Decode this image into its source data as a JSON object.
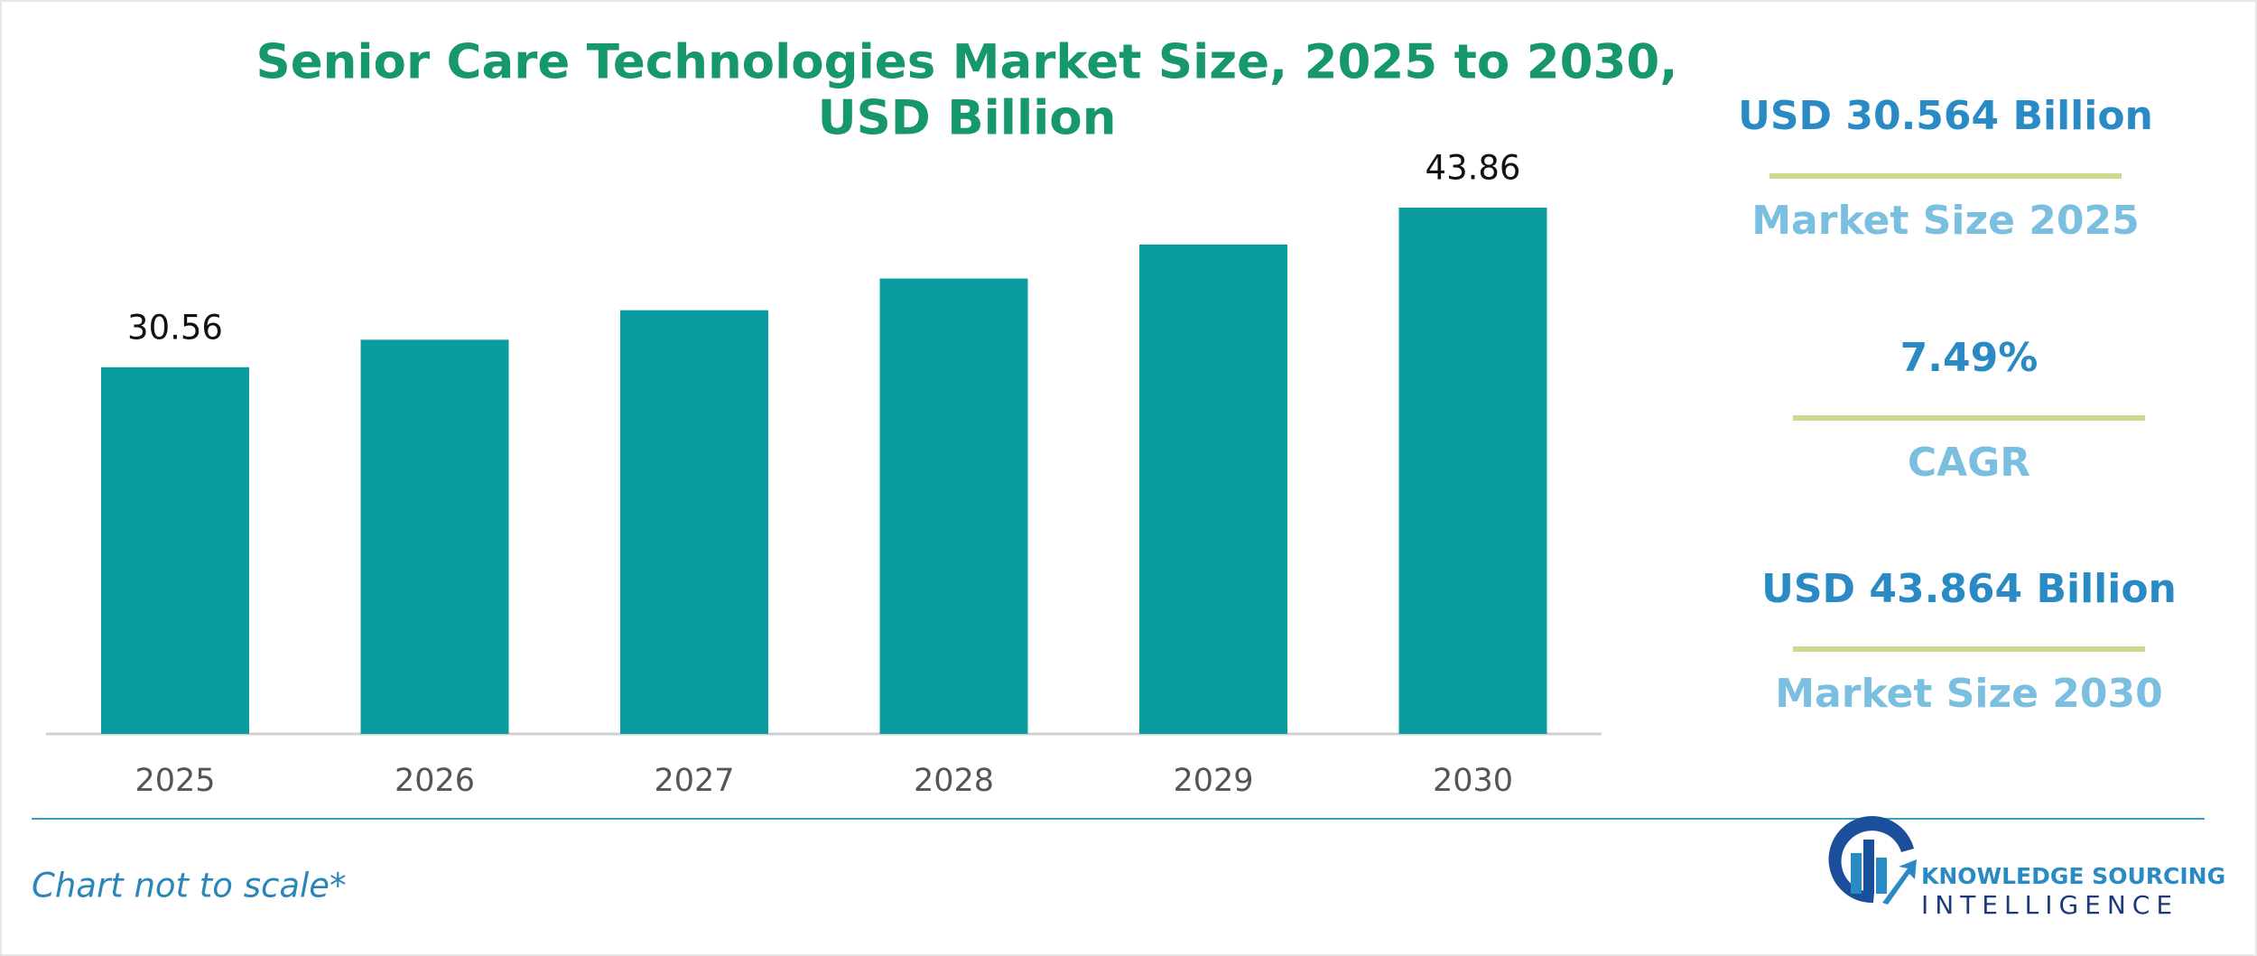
{
  "chart_data": {
    "type": "bar",
    "title": [
      "Senior Care Technologies Market Size, 2025 to 2030,",
      "USD Billion"
    ],
    "categories": [
      "2025",
      "2026",
      "2027",
      "2028",
      "2029",
      "2030"
    ],
    "values": [
      30.56,
      32.85,
      35.31,
      37.95,
      40.79,
      43.86
    ],
    "value_labels": [
      "30.56",
      null,
      null,
      null,
      null,
      "43.86"
    ],
    "color": "#0a9c9f"
  },
  "summary": [
    {
      "value": "USD 30.564 Billion",
      "label": "Market Size 2025"
    },
    {
      "value": "7.49%",
      "label": "CAGR"
    },
    {
      "value": "USD 43.864 Billion",
      "label": "Market Size 2030"
    }
  ],
  "footnote": "Chart not to scale*",
  "logo": {
    "line1": "KNOWLEDGE SOURCING",
    "line2": "INTELLIGENCE"
  }
}
